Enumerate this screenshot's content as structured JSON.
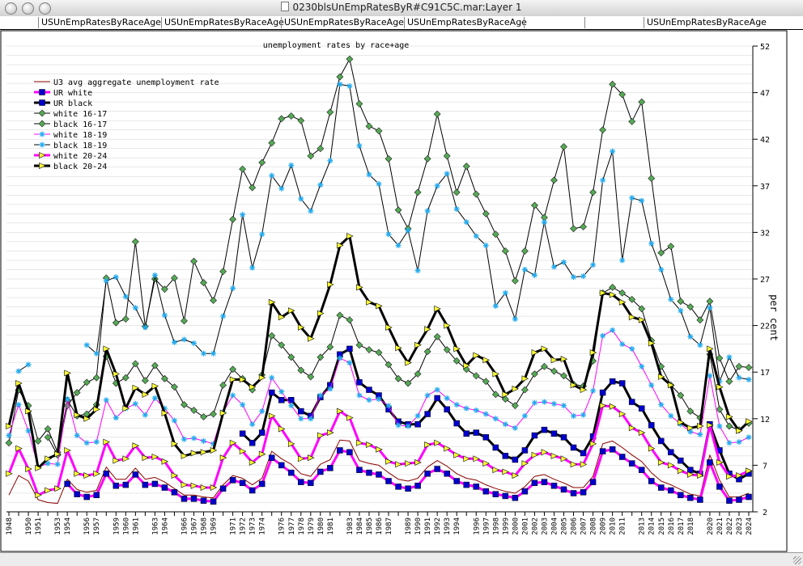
{
  "window": {
    "title": "0230blsUnEmpRatesByR#C91C5C.mar:Layer 1"
  },
  "tabs": [
    {
      "label": "USUnEmpRatesByRaceAge"
    },
    {
      "label": "USUnEmpRatesByRaceAge"
    },
    {
      "label": "USUnEmpRatesByRaceAge"
    },
    {
      "label": "USUnEmpRatesByRaceAge"
    },
    {
      "label": "USUnEmpRatesByRaceAge"
    }
  ],
  "colors": {
    "u3": "#8b0000",
    "white_line": "#ff00ff",
    "marker_blue": "#0000cc",
    "black_line": "#000000",
    "teen_marker": "#55aa55",
    "star_marker": "#22aaee",
    "tri_marker": "#ffff33",
    "grid": "#d0d0d0"
  },
  "chart_data": {
    "type": "line",
    "title": "unemployment rates by race+age",
    "ylabel": "per cent",
    "ylim": [
      2,
      52
    ],
    "yticks": [
      2,
      7,
      12,
      17,
      22,
      27,
      32,
      37,
      42,
      47,
      52
    ],
    "x": [
      1948,
      1949,
      1950,
      1951,
      1952,
      1953,
      1954,
      1955,
      1956,
      1957,
      1958,
      1959,
      1960,
      1961,
      1962,
      1963,
      1964,
      1965,
      1966,
      1967,
      1968,
      1969,
      1970,
      1971,
      1972,
      1973,
      1974,
      1975,
      1976,
      1977,
      1978,
      1979,
      1980,
      1981,
      1982,
      1983,
      1984,
      1985,
      1986,
      1987,
      1988,
      1989,
      1990,
      1991,
      1992,
      1993,
      1994,
      1995,
      1996,
      1997,
      1998,
      1999,
      2000,
      2001,
      2002,
      2003,
      2004,
      2005,
      2006,
      2007,
      2008,
      2009,
      2010,
      2011,
      2012,
      2013,
      2014,
      2015,
      2016,
      2017,
      2018,
      2019,
      2020,
      2021,
      2022,
      2023,
      2024
    ],
    "xtick_labels": [
      "1948",
      "1950",
      "1951",
      "1953",
      "1954",
      "1956",
      "1957",
      "1959",
      "1960",
      "1961",
      "1963",
      "1964",
      "1966",
      "1967",
      "1968",
      "1969",
      "1971",
      "1972",
      "1973",
      "1974",
      "1976",
      "1977",
      "1978",
      "1979",
      "1980",
      "1981",
      "1983",
      "1984",
      "1985",
      "1986",
      "1987",
      "1989",
      "1990",
      "1991",
      "1992",
      "1993",
      "1994",
      "1996",
      "1997",
      "1998",
      "1999",
      "2000",
      "2001",
      "2002",
      "2003",
      "2004",
      "2005",
      "2006",
      "2007",
      "2008",
      "2009",
      "2010",
      "2011",
      "2013",
      "2014",
      "2015",
      "2016",
      "2017",
      "2018",
      "2020",
      "2021",
      "2022",
      "2023",
      "2024"
    ],
    "legend_position": "top-left",
    "series": [
      {
        "name": "U3 avg aggregate unemployment rate",
        "style": "thin",
        "color": "#8b0000",
        "marker": "none",
        "values": [
          3.8,
          5.9,
          5.3,
          3.3,
          3.0,
          2.9,
          5.5,
          4.4,
          4.1,
          4.3,
          6.8,
          5.5,
          5.5,
          6.7,
          5.5,
          5.7,
          5.2,
          4.5,
          3.8,
          3.8,
          3.6,
          3.5,
          4.9,
          5.9,
          5.6,
          4.9,
          5.6,
          8.5,
          7.7,
          7.1,
          6.1,
          5.8,
          7.1,
          7.6,
          9.7,
          9.6,
          7.5,
          7.2,
          7.0,
          6.2,
          5.5,
          5.3,
          5.6,
          6.8,
          7.5,
          6.9,
          6.1,
          5.6,
          5.4,
          4.9,
          4.5,
          4.2,
          4.0,
          4.7,
          5.8,
          6.0,
          5.5,
          5.1,
          4.6,
          4.6,
          5.8,
          9.3,
          9.6,
          8.9,
          8.1,
          7.4,
          6.2,
          5.3,
          4.9,
          4.4,
          3.9,
          3.7,
          8.1,
          5.4,
          3.6,
          3.6,
          4.0
        ]
      },
      {
        "name": "UR white",
        "style": "thick",
        "color": "#ff00ff",
        "marker": "square",
        "values": [
          null,
          null,
          null,
          null,
          null,
          null,
          5.0,
          3.9,
          3.6,
          3.8,
          6.1,
          4.8,
          4.9,
          6.0,
          4.9,
          5.0,
          4.6,
          4.1,
          3.4,
          3.4,
          3.2,
          3.1,
          4.5,
          5.4,
          5.1,
          4.3,
          5.0,
          7.8,
          7.0,
          6.2,
          5.2,
          5.1,
          6.3,
          6.7,
          8.6,
          8.4,
          6.5,
          6.2,
          6.0,
          5.3,
          4.7,
          4.5,
          4.8,
          6.1,
          6.6,
          6.1,
          5.3,
          4.9,
          4.7,
          4.2,
          3.9,
          3.7,
          3.5,
          4.2,
          5.1,
          5.2,
          4.8,
          4.4,
          4.0,
          4.1,
          5.2,
          8.5,
          8.7,
          7.9,
          7.2,
          6.5,
          5.3,
          4.6,
          4.3,
          3.8,
          3.5,
          3.3,
          7.3,
          4.7,
          3.2,
          3.3,
          3.6
        ]
      },
      {
        "name": "UR black",
        "style": "thick",
        "color": "#000000",
        "marker": "square",
        "values": [
          null,
          null,
          null,
          null,
          null,
          null,
          null,
          null,
          null,
          null,
          null,
          null,
          null,
          null,
          null,
          null,
          null,
          null,
          null,
          null,
          null,
          null,
          null,
          null,
          10.4,
          9.4,
          10.5,
          14.8,
          14.0,
          14.0,
          12.8,
          12.3,
          14.3,
          15.6,
          18.9,
          19.5,
          15.9,
          15.1,
          14.5,
          13.0,
          11.7,
          11.4,
          11.4,
          12.5,
          14.2,
          13.0,
          11.5,
          10.4,
          10.5,
          10.0,
          8.9,
          8.0,
          7.6,
          8.6,
          10.2,
          10.8,
          10.4,
          10.0,
          8.9,
          8.3,
          10.1,
          14.8,
          16.0,
          15.8,
          13.8,
          13.1,
          11.3,
          9.6,
          8.4,
          7.5,
          6.5,
          6.1,
          11.4,
          8.6,
          6.1,
          5.5,
          6.1
        ]
      },
      {
        "name": "white 16-17",
        "style": "thin",
        "color": "#000000",
        "marker": "diamond",
        "values": [
          9.4,
          15.1,
          13.4,
          9.6,
          10.9,
          8.4,
          14.0,
          12.3,
          12.5,
          13.5,
          18.7,
          15.8,
          16.4,
          17.9,
          16.1,
          17.7,
          16.3,
          15.4,
          13.5,
          12.9,
          12.2,
          12.5,
          15.6,
          17.3,
          16.3,
          15.1,
          16.7,
          20.9,
          19.9,
          18.6,
          17.2,
          16.5,
          18.6,
          19.7,
          23.1,
          22.6,
          19.9,
          19.4,
          19.1,
          17.8,
          16.3,
          15.8,
          16.8,
          19.2,
          20.8,
          19.4,
          18.2,
          17.3,
          16.6,
          16.0,
          14.6,
          14.1,
          13.4,
          15.1,
          16.8,
          17.6,
          17.1,
          16.6,
          15.7,
          15.5,
          18.2,
          25.5,
          26.1,
          25.5,
          24.8,
          23.8,
          20.4,
          17.6,
          15.6,
          14.5,
          12.8,
          12.1,
          18.9,
          13.0,
          11.2,
          10.8,
          11.5
        ]
      },
      {
        "name": "black 16-17",
        "style": "thin",
        "color": "#000000",
        "marker": "diamond",
        "values": [
          null,
          null,
          null,
          null,
          10.0,
          8.1,
          13.4,
          14.8,
          15.9,
          16.4,
          27.1,
          22.3,
          22.7,
          31.0,
          21.9,
          27.0,
          25.9,
          27.1,
          22.5,
          28.9,
          26.6,
          24.7,
          27.8,
          33.4,
          38.8,
          36.8,
          39.5,
          41.6,
          44.2,
          44.5,
          44.0,
          40.2,
          41.0,
          44.9,
          48.7,
          50.6,
          45.8,
          43.4,
          42.9,
          39.9,
          34.4,
          32.4,
          36.3,
          39.9,
          44.7,
          40.2,
          36.3,
          39.1,
          36.1,
          34.0,
          31.8,
          30.0,
          26.8,
          30.0,
          34.9,
          33.6,
          37.6,
          41.2,
          32.4,
          32.6,
          36.3,
          43.0,
          47.9,
          46.8,
          43.9,
          46.0,
          37.8,
          29.8,
          30.5,
          24.6,
          24.0,
          22.6,
          24.6,
          18.5,
          16.0,
          17.6,
          17.5
        ]
      },
      {
        "name": "white 18-19",
        "style": "thin",
        "color": "#ff00ff",
        "marker": "star",
        "values": [
          10.2,
          13.5,
          10.7,
          6.8,
          7.2,
          7.1,
          14.1,
          10.2,
          9.4,
          9.5,
          14.0,
          12.1,
          13.1,
          13.6,
          12.4,
          14.2,
          13.1,
          11.8,
          9.8,
          9.9,
          9.6,
          9.3,
          12.7,
          14.5,
          13.5,
          11.4,
          12.8,
          16.4,
          14.9,
          13.4,
          12.0,
          12.0,
          14.5,
          15.2,
          18.5,
          18.0,
          14.5,
          14.0,
          14.1,
          13.4,
          11.3,
          11.2,
          12.3,
          14.5,
          15.1,
          14.2,
          13.5,
          13.1,
          12.9,
          12.5,
          12.0,
          11.4,
          11.0,
          12.3,
          13.7,
          13.8,
          13.6,
          13.4,
          12.3,
          12.4,
          15.0,
          20.9,
          21.5,
          20.0,
          19.5,
          17.6,
          15.6,
          13.5,
          12.3,
          11.4,
          10.6,
          10.3,
          16.6,
          11.2,
          9.4,
          9.5,
          10.0
        ]
      },
      {
        "name": "black 18-19",
        "style": "thin",
        "color": "#000000",
        "marker": "star",
        "values": [
          null,
          17.1,
          17.8,
          null,
          null,
          null,
          null,
          null,
          19.9,
          19.0,
          26.8,
          27.2,
          25.1,
          23.9,
          21.8,
          27.4,
          23.1,
          20.2,
          20.5,
          20.1,
          19.0,
          19.0,
          23.0,
          26.0,
          33.9,
          28.2,
          31.8,
          38.1,
          36.7,
          39.2,
          35.6,
          34.3,
          37.1,
          39.7,
          47.9,
          47.7,
          41.3,
          38.2,
          37.2,
          31.8,
          30.6,
          32.2,
          27.9,
          34.3,
          37.0,
          38.3,
          34.5,
          33.1,
          31.6,
          30.6,
          24.1,
          25.5,
          22.7,
          28.0,
          27.4,
          33.1,
          28.3,
          28.8,
          27.2,
          27.3,
          28.5,
          37.6,
          40.7,
          29.0,
          35.7,
          35.4,
          30.8,
          28.0,
          24.8,
          23.6,
          20.8,
          19.9,
          23.9,
          16.0,
          18.6,
          16.4,
          16.2
        ]
      },
      {
        "name": "white 20-24",
        "style": "thick",
        "color": "#ff00ff",
        "marker": "triangle",
        "values": [
          6.1,
          8.8,
          6.6,
          3.8,
          4.3,
          4.5,
          8.6,
          6.1,
          5.9,
          6.1,
          9.5,
          7.5,
          7.7,
          9.1,
          7.8,
          7.9,
          7.4,
          5.9,
          4.9,
          4.8,
          4.6,
          4.6,
          7.8,
          9.4,
          8.5,
          7.3,
          8.2,
          12.3,
          10.9,
          9.3,
          7.7,
          7.8,
          10.2,
          10.5,
          12.8,
          12.1,
          9.4,
          9.2,
          8.7,
          7.4,
          7.1,
          7.2,
          7.3,
          9.2,
          9.4,
          8.8,
          8.1,
          7.7,
          7.7,
          7.2,
          6.5,
          6.3,
          5.9,
          7.2,
          8.1,
          8.4,
          8.0,
          7.7,
          7.1,
          7.1,
          9.3,
          13.4,
          13.3,
          12.5,
          11.0,
          10.5,
          8.8,
          7.3,
          7.0,
          6.4,
          6.0,
          5.9,
          11.3,
          7.3,
          5.8,
          5.9,
          6.4
        ]
      },
      {
        "name": "black 20-24",
        "style": "thick",
        "color": "#000000",
        "marker": "triangle",
        "values": [
          11.2,
          15.8,
          12.8,
          6.7,
          7.7,
          8.2,
          16.9,
          12.4,
          12.0,
          13.0,
          19.5,
          16.8,
          13.1,
          15.3,
          14.6,
          15.5,
          12.6,
          9.3,
          8.0,
          8.3,
          8.4,
          8.6,
          12.6,
          16.2,
          16.2,
          15.4,
          16.4,
          24.5,
          22.9,
          23.6,
          21.8,
          20.6,
          23.3,
          26.4,
          30.6,
          31.6,
          26.1,
          24.5,
          24.1,
          21.8,
          19.6,
          18.0,
          19.9,
          21.6,
          23.8,
          22.0,
          19.5,
          17.7,
          18.8,
          18.3,
          16.8,
          14.6,
          15.2,
          16.3,
          19.1,
          19.5,
          18.3,
          18.4,
          15.6,
          15.1,
          19.1,
          25.5,
          25.3,
          24.5,
          22.9,
          22.6,
          20.1,
          16.5,
          15.6,
          11.6,
          11.0,
          11.2,
          19.5,
          15.4,
          12.2,
          10.7,
          11.7
        ]
      }
    ]
  }
}
